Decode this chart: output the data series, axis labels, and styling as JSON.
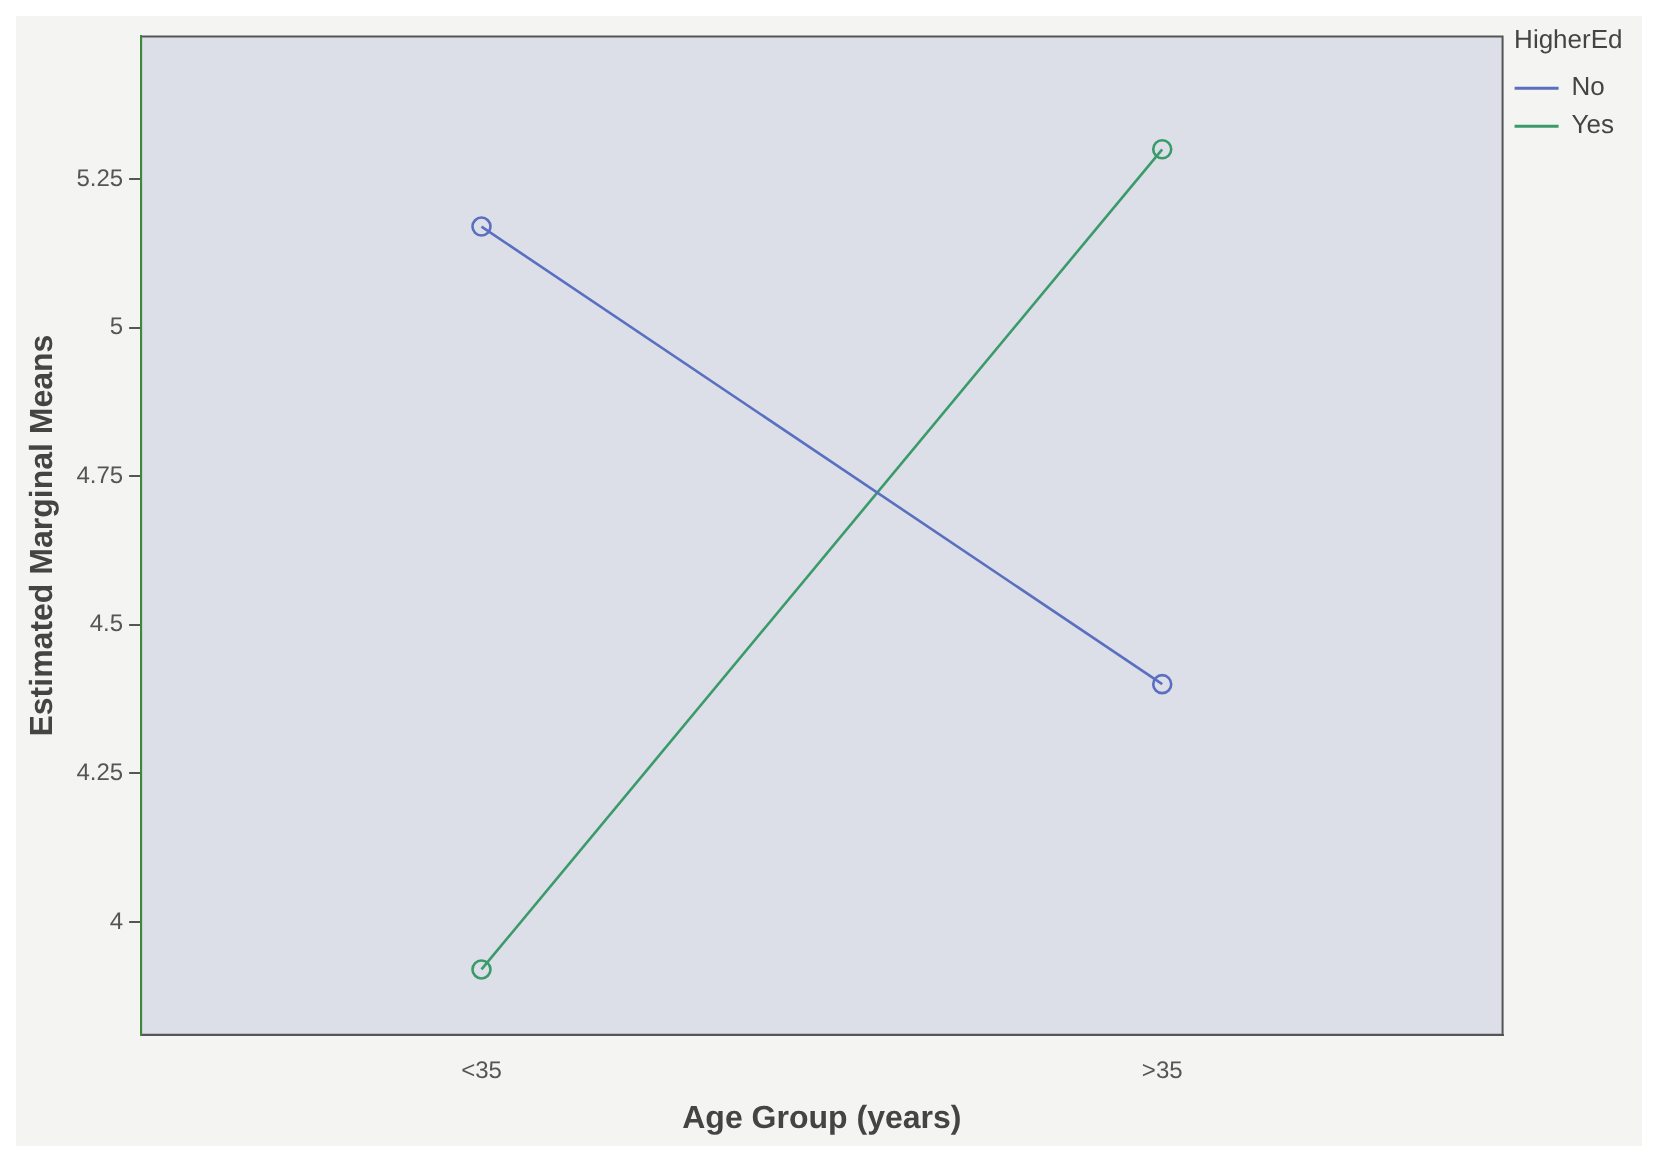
{
  "chart_data": {
    "type": "line",
    "xlabel": "Age Group (years)",
    "ylabel": "Estimated Marginal Means",
    "legend_title": "HigherEd",
    "categories": [
      "<35",
      ">35"
    ],
    "series": [
      {
        "name": "No",
        "color": "#5a6fc0",
        "values": [
          5.17,
          4.4
        ]
      },
      {
        "name": "Yes",
        "color": "#3a9a6a",
        "values": [
          3.92,
          5.3
        ]
      }
    ],
    "ylim": [
      3.81,
      5.49
    ],
    "yticks": [
      4,
      4.25,
      4.5,
      4.75,
      5,
      5.25
    ],
    "grid": false,
    "legend": "top right",
    "marker": "circle",
    "line_style": "solid"
  }
}
